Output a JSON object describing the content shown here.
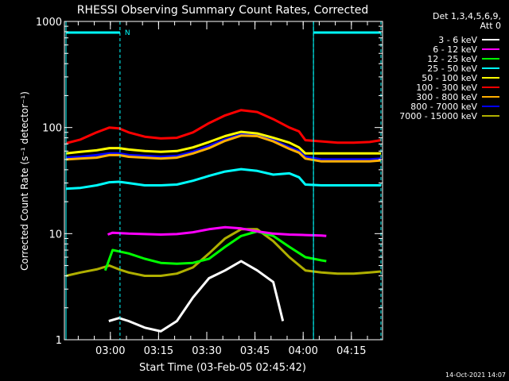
{
  "chart_data": {
    "type": "line",
    "title": "RHESSI Observing Summary Count Rates, Corrected",
    "xlabel": "Start Time (03-Feb-05 02:45:42)",
    "ylabel": "Corrected Count Rate (s⁻¹ detector⁻¹)",
    "yscale": "log",
    "ylim": [
      1,
      1000
    ],
    "xlim": [
      0,
      99
    ],
    "x_units": "minutes since 02:45:42",
    "y_ticks": [
      1,
      10,
      100,
      1000
    ],
    "y_tick_labels": [
      "1",
      "10",
      "100",
      "1000"
    ],
    "x_ticks": [
      14.3,
      29.3,
      44.3,
      59.3,
      74.3,
      89.3
    ],
    "x_tick_labels": [
      "03:00",
      "03:15",
      "03:30",
      "03:45",
      "04:00",
      "04:15"
    ],
    "legend_header": [
      "Det 1,3,4,5,6,9,",
      "Att 0"
    ],
    "legend_position": "right",
    "series": [
      {
        "name": "3 - 6 keV",
        "color": "#ffffff",
        "x": [
          13.8,
          17,
          20,
          25,
          30,
          35,
          40,
          45,
          50,
          55,
          60,
          65,
          68
        ],
        "y": [
          1.5,
          1.6,
          1.5,
          1.3,
          1.2,
          1.5,
          2.5,
          3.8,
          4.5,
          5.5,
          4.5,
          3.5,
          1.5
        ]
      },
      {
        "name": "6 - 12 keV",
        "color": "#ff00ff",
        "x": [
          13.5,
          15,
          20,
          25,
          30,
          35,
          40,
          45,
          50,
          55,
          60,
          65,
          70,
          75,
          80,
          81.5
        ],
        "y": [
          9.8,
          10.2,
          10,
          9.9,
          9.8,
          9.9,
          10.3,
          11,
          11.5,
          11.2,
          10.5,
          10,
          9.8,
          9.7,
          9.6,
          9.5
        ]
      },
      {
        "name": "12 - 25 keV",
        "color": "#00ff00",
        "x": [
          12.7,
          15,
          20,
          25,
          30,
          35,
          40,
          45,
          50,
          55,
          60,
          65,
          70,
          75,
          80,
          81.5
        ],
        "y": [
          4.5,
          7.0,
          6.5,
          5.8,
          5.3,
          5.2,
          5.3,
          5.8,
          7.5,
          9.5,
          10.5,
          9.5,
          7.5,
          6.0,
          5.6,
          5.5
        ]
      },
      {
        "name": "25 - 50 keV",
        "color": "#00ffff",
        "x": [
          0.5,
          5,
          10,
          14,
          17,
          20,
          25,
          30,
          35,
          40,
          45,
          50,
          55,
          60,
          65,
          70,
          73,
          75,
          80,
          85,
          90,
          95,
          98.5
        ],
        "y": [
          26.5,
          27,
          28.5,
          30.5,
          30.8,
          30,
          28.5,
          28.5,
          29,
          31.5,
          35,
          38.5,
          40.5,
          39,
          36,
          37,
          34,
          29,
          28.5,
          28.5,
          28.5,
          28.5,
          28.5
        ]
      },
      {
        "name": "50 - 100 keV",
        "color": "#ffff00",
        "x": [
          0.5,
          5,
          10,
          14,
          17,
          20,
          25,
          30,
          35,
          40,
          45,
          50,
          55,
          60,
          65,
          70,
          73,
          75,
          80,
          85,
          90,
          95,
          98.5
        ],
        "y": [
          57,
          59,
          61,
          64,
          64,
          62,
          60,
          59,
          60,
          65,
          73,
          83,
          91,
          88,
          80,
          72,
          65,
          57,
          57,
          57,
          57,
          57,
          57
        ]
      },
      {
        "name": "100 - 300 keV",
        "color": "#ff0000",
        "x": [
          0.5,
          5,
          10,
          14,
          17,
          20,
          25,
          30,
          35,
          40,
          45,
          50,
          55,
          60,
          65,
          70,
          73,
          75,
          80,
          85,
          90,
          95,
          98.5
        ],
        "y": [
          71,
          77,
          90,
          100,
          98,
          90,
          82,
          79,
          80,
          90,
          110,
          130,
          146,
          140,
          120,
          100,
          92,
          76,
          74,
          72,
          72,
          73,
          76
        ]
      },
      {
        "name": "300 - 800 keV",
        "color": "#ffaf00",
        "x": [
          0.5,
          5,
          10,
          14,
          17,
          20,
          25,
          30,
          35,
          40,
          45,
          50,
          55,
          60,
          65,
          70,
          73,
          75,
          80,
          85,
          90,
          95,
          98.5
        ],
        "y": [
          50,
          51,
          52,
          55,
          55,
          53,
          52,
          51,
          52,
          57,
          64,
          75,
          84,
          83,
          74,
          63,
          58,
          51,
          48,
          48,
          48,
          48,
          49
        ]
      },
      {
        "name": "800 - 7000 keV",
        "color": "#0000ff",
        "x": [
          0.5,
          5,
          10,
          14,
          17,
          20,
          25,
          30,
          35,
          40,
          45,
          50,
          55,
          60,
          65,
          70,
          73,
          75,
          80,
          85,
          90,
          95,
          98.5
        ],
        "y": [
          52,
          53,
          55,
          57,
          57,
          55,
          54,
          53,
          54,
          59,
          67,
          77,
          86,
          85,
          76,
          65,
          60,
          53,
          50,
          50,
          50,
          50,
          51
        ]
      },
      {
        "name": "7000 - 15000 keV",
        "color": "#afaf00",
        "x": [
          0.5,
          5,
          10,
          14,
          17,
          20,
          25,
          30,
          35,
          40,
          45,
          50,
          55,
          60,
          65,
          70,
          75,
          80,
          85,
          90,
          95,
          98.5
        ],
        "y": [
          4.0,
          4.3,
          4.6,
          5.0,
          4.6,
          4.3,
          4.0,
          4.0,
          4.2,
          4.8,
          6.5,
          9.0,
          11.0,
          11.0,
          8.5,
          6.0,
          4.5,
          4.3,
          4.2,
          4.2,
          4.3,
          4.4
        ]
      }
    ],
    "night_lines": [
      {
        "x_start": 0.5,
        "x_end": 17.3,
        "label": "N"
      },
      {
        "x_start": 77.5,
        "x_end": 98.5,
        "label": ""
      }
    ],
    "saa_verticals": [
      0.5,
      77.5
    ],
    "dashed_verticals": [
      17.3,
      77.5,
      98.5
    ]
  },
  "timestamp": "14-Oct-2021 14:07"
}
